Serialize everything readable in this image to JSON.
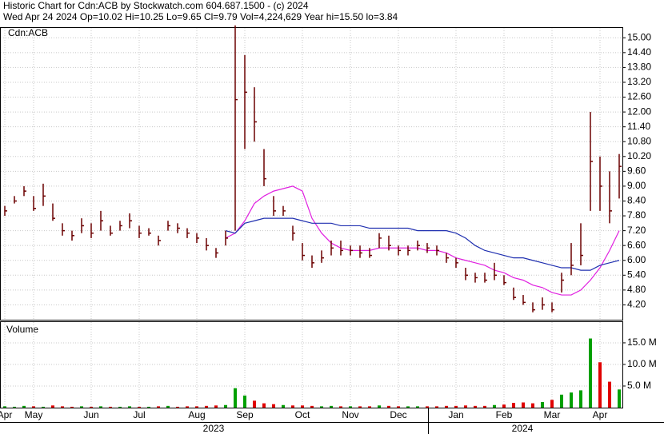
{
  "chart_data": {
    "type": "hlc",
    "title": "Historic Chart for Cdn:ACB by Stockwatch.com 604.687.1500 - (c) 2024",
    "subtitle": "Wed Apr 24 2024   Op=10.02  Hi=10.25  Lo=9.65  Cl=9.79  Vol=4,224,629  Year hi=15.50  lo=3.84",
    "symbol_label": "Cdn:ACB",
    "categories": [
      "Apr",
      null,
      null,
      "May",
      null,
      null,
      null,
      null,
      null,
      "Jun",
      null,
      null,
      null,
      null,
      "Jul",
      null,
      null,
      null,
      null,
      null,
      "Aug",
      null,
      null,
      null,
      null,
      "Sep",
      null,
      null,
      null,
      null,
      null,
      "Oct",
      null,
      null,
      null,
      null,
      "Nov",
      null,
      null,
      null,
      null,
      "Dec",
      null,
      null,
      null,
      null,
      null,
      "Jan",
      null,
      null,
      null,
      null,
      "Feb",
      null,
      null,
      null,
      null,
      "Mar",
      null,
      null,
      null,
      null,
      "Apr",
      null,
      null
    ],
    "years": [
      "2023",
      "2024"
    ],
    "high": [
      8.2,
      8.6,
      9.0,
      8.6,
      9.1,
      8.3,
      7.5,
      7.2,
      7.7,
      7.5,
      8.0,
      7.4,
      7.6,
      7.9,
      7.4,
      7.3,
      7.0,
      7.6,
      7.5,
      7.3,
      7.1,
      6.9,
      6.5,
      7.2,
      15.5,
      14.3,
      13.0,
      10.5,
      8.6,
      8.2,
      7.4,
      6.7,
      6.2,
      6.4,
      6.8,
      6.8,
      6.6,
      6.6,
      6.5,
      7.1,
      7.0,
      6.6,
      6.6,
      6.8,
      6.7,
      6.6,
      6.3,
      6.1,
      5.7,
      5.5,
      5.5,
      5.9,
      5.4,
      4.9,
      4.6,
      4.3,
      4.5,
      4.3,
      5.5,
      6.7,
      7.5,
      12.0,
      10.2,
      9.6,
      10.3
    ],
    "low": [
      7.8,
      8.3,
      8.6,
      8.0,
      8.2,
      7.6,
      7.0,
      6.8,
      7.1,
      6.9,
      7.2,
      7.0,
      7.2,
      7.3,
      6.9,
      7.0,
      6.6,
      7.2,
      7.1,
      6.9,
      6.7,
      6.4,
      6.1,
      6.6,
      7.2,
      10.5,
      10.8,
      9.0,
      7.8,
      7.8,
      6.8,
      6.0,
      5.7,
      5.9,
      6.2,
      6.2,
      6.2,
      6.1,
      6.1,
      6.5,
      6.4,
      6.2,
      6.2,
      6.4,
      6.3,
      6.2,
      5.9,
      5.7,
      5.2,
      5.1,
      5.1,
      5.2,
      5.0,
      4.4,
      4.2,
      3.9,
      4.0,
      3.9,
      4.7,
      5.4,
      5.8,
      8.0,
      8.0,
      7.5,
      8.5
    ],
    "close": [
      8.0,
      8.4,
      8.8,
      8.1,
      8.6,
      7.7,
      7.2,
      7.0,
      7.4,
      7.1,
      7.6,
      7.1,
      7.4,
      7.6,
      7.1,
      7.1,
      6.8,
      7.4,
      7.3,
      7.1,
      6.9,
      6.6,
      6.3,
      6.9,
      12.5,
      12.8,
      11.6,
      9.3,
      8.0,
      8.0,
      7.1,
      6.2,
      5.9,
      6.1,
      6.5,
      6.4,
      6.4,
      6.3,
      6.2,
      6.9,
      6.6,
      6.4,
      6.4,
      6.6,
      6.5,
      6.4,
      6.1,
      5.9,
      5.4,
      5.3,
      5.2,
      5.4,
      5.1,
      4.5,
      4.3,
      4.0,
      4.2,
      4.0,
      5.2,
      5.8,
      6.2,
      10.0,
      9.0,
      8.0,
      9.8
    ],
    "color": "#6b0000",
    "moving_averages": [
      {
        "color": "#e020e0",
        "values": [
          null,
          null,
          null,
          null,
          null,
          null,
          null,
          null,
          null,
          null,
          null,
          null,
          null,
          null,
          null,
          null,
          null,
          null,
          null,
          null,
          null,
          null,
          null,
          6.9,
          7.1,
          7.6,
          8.3,
          8.6,
          8.8,
          8.9,
          9.0,
          8.8,
          7.7,
          7.1,
          6.7,
          6.5,
          6.4,
          6.4,
          6.4,
          6.5,
          6.5,
          6.5,
          6.5,
          6.5,
          6.4,
          6.4,
          6.3,
          6.1,
          6.0,
          5.9,
          5.8,
          5.6,
          5.5,
          5.3,
          5.2,
          5.0,
          4.9,
          4.7,
          4.6,
          4.6,
          4.8,
          5.2,
          5.7,
          6.4,
          7.2
        ]
      },
      {
        "color": "#2030b0",
        "values": [
          null,
          null,
          null,
          null,
          null,
          null,
          null,
          null,
          null,
          null,
          null,
          null,
          null,
          null,
          null,
          null,
          null,
          null,
          null,
          null,
          null,
          null,
          null,
          7.2,
          7.1,
          7.5,
          7.6,
          7.7,
          7.7,
          7.7,
          7.7,
          7.6,
          7.5,
          7.5,
          7.5,
          7.4,
          7.4,
          7.4,
          7.3,
          7.3,
          7.3,
          7.3,
          7.3,
          7.2,
          7.2,
          7.2,
          7.2,
          7.1,
          6.9,
          6.6,
          6.4,
          6.3,
          6.2,
          6.1,
          6.1,
          6.0,
          5.9,
          5.8,
          5.7,
          5.7,
          5.6,
          5.6,
          5.8,
          5.9,
          6.0
        ]
      }
    ],
    "ylim": [
      3.6,
      15.3
    ],
    "yticks": [
      {
        "value": 15,
        "label": "15.00"
      },
      {
        "value": 14.4,
        "label": "14.40"
      },
      {
        "value": 13.8,
        "label": "13.80"
      },
      {
        "value": 13.2,
        "label": "13.20"
      },
      {
        "value": 12.6,
        "label": "12.60"
      },
      {
        "value": 12,
        "label": "12.00"
      },
      {
        "value": 11.4,
        "label": "11.40"
      },
      {
        "value": 10.8,
        "label": "10.80"
      },
      {
        "value": 10.2,
        "label": "10.20"
      },
      {
        "value": 9.6,
        "label": "9.60"
      },
      {
        "value": 9,
        "label": "9.00"
      },
      {
        "value": 8.4,
        "label": "8.40"
      },
      {
        "value": 7.8,
        "label": "7.80"
      },
      {
        "value": 7.2,
        "label": "7.20"
      },
      {
        "value": 6.6,
        "label": "6.60"
      },
      {
        "value": 6,
        "label": "6.00"
      },
      {
        "value": 5.4,
        "label": "5.40"
      },
      {
        "value": 4.8,
        "label": "4.80"
      },
      {
        "value": 4.2,
        "label": "4.20"
      }
    ],
    "grid": true,
    "volume": {
      "label": "Volume",
      "up_color": "#00a000",
      "down_color": "#e00000",
      "values": [
        0.3,
        0.2,
        0.4,
        0.3,
        0.2,
        0.5,
        0.3,
        0.2,
        0.3,
        0.2,
        0.3,
        0.2,
        0.2,
        0.3,
        0.2,
        0.2,
        0.3,
        0.4,
        0.2,
        0.3,
        0.3,
        0.4,
        0.5,
        0.6,
        4.5,
        2.8,
        1.6,
        1.0,
        0.8,
        0.6,
        0.5,
        0.5,
        0.4,
        0.3,
        0.4,
        0.3,
        0.3,
        0.3,
        0.3,
        0.5,
        0.4,
        0.3,
        0.3,
        0.3,
        0.3,
        0.3,
        0.4,
        0.4,
        0.5,
        0.4,
        0.4,
        0.6,
        0.7,
        1.1,
        1.2,
        1.0,
        1.3,
        1.8,
        3.0,
        3.5,
        4.0,
        16.0,
        10.5,
        6.0,
        4.2
      ],
      "ylim": [
        0,
        19.8
      ],
      "yticks": [
        {
          "value": 15,
          "label": "15.0 M"
        },
        {
          "value": 10,
          "label": "10.0 M"
        },
        {
          "value": 5,
          "label": "5.0 M"
        }
      ]
    }
  }
}
